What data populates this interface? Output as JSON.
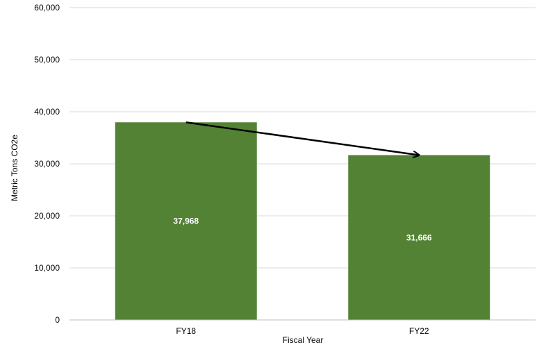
{
  "chart_data": {
    "type": "bar",
    "categories": [
      "FY18",
      "FY22"
    ],
    "values": [
      37968,
      31666
    ],
    "data_labels": [
      "37,968",
      "31,666"
    ],
    "title": "",
    "xlabel": "Fiscal Year",
    "ylabel": "Metric Tons CO2e",
    "ylim": [
      0,
      60000
    ],
    "yticks": [
      0,
      10000,
      20000,
      30000,
      40000,
      50000,
      60000
    ],
    "ytick_labels": [
      "0",
      "10,000",
      "20,000",
      "30,000",
      "40,000",
      "50,000",
      "60,000"
    ],
    "grid": true,
    "legend": "none",
    "bar_color": "#548235",
    "annotation": {
      "type": "arrow",
      "from_category": "FY18",
      "to_category": "FY22",
      "color": "#000000"
    }
  }
}
